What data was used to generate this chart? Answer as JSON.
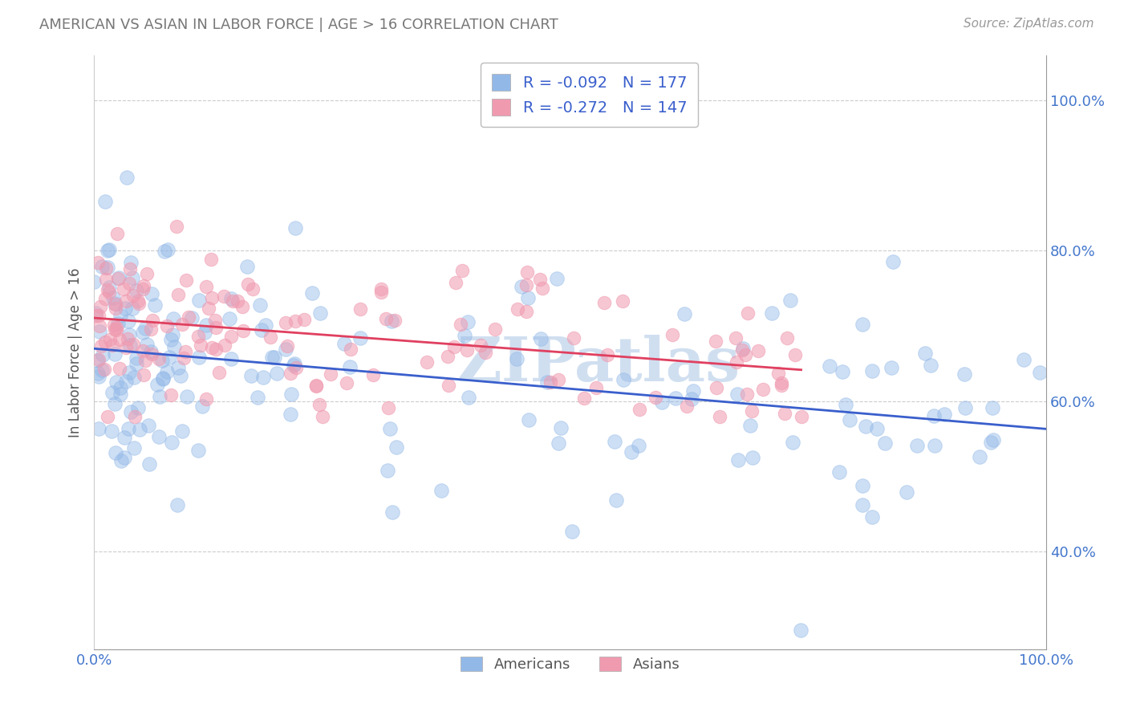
{
  "title": "AMERICAN VS ASIAN IN LABOR FORCE | AGE > 16 CORRELATION CHART",
  "source": "Source: ZipAtlas.com",
  "ylabel": "In Labor Force | Age > 16",
  "legend_r_color": "#3a5fcc",
  "americans_color": "#92b8e8",
  "asians_color": "#f09ab0",
  "trendline_american_color": "#3a5fcc",
  "trendline_asian_color": "#e04060",
  "background_color": "#ffffff",
  "grid_color": "#cccccc",
  "title_color": "#555555",
  "watermark_text": "ZIPatlas",
  "watermark_color": "#d0dff0",
  "R_american": -0.092,
  "N_american": 177,
  "R_asian": -0.272,
  "N_asian": 147,
  "xlim": [
    0.0,
    1.0
  ],
  "ylim": [
    0.27,
    1.06
  ],
  "yticks": [
    0.4,
    0.6,
    0.8,
    1.0
  ],
  "xticks": [
    0.0,
    1.0
  ]
}
